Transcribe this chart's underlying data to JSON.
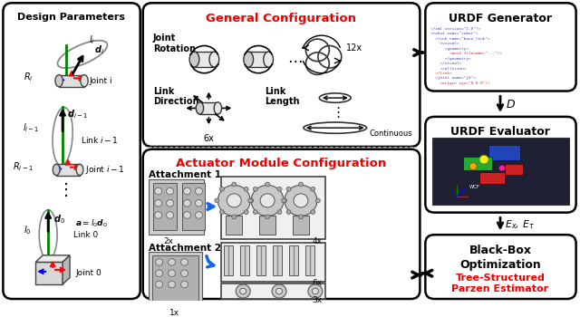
{
  "panel_left_title": "Design Parameters",
  "panel_mid_title_general": "General Configuration",
  "panel_mid_title_actuator": "Actuator Module Configuration",
  "title_color_red": "#EE0000",
  "bg_color": "#FFFFFF",
  "code_color_blue": "#4444CC",
  "code_color_red": "#CC0000",
  "robot_vis_bg": "#202035"
}
